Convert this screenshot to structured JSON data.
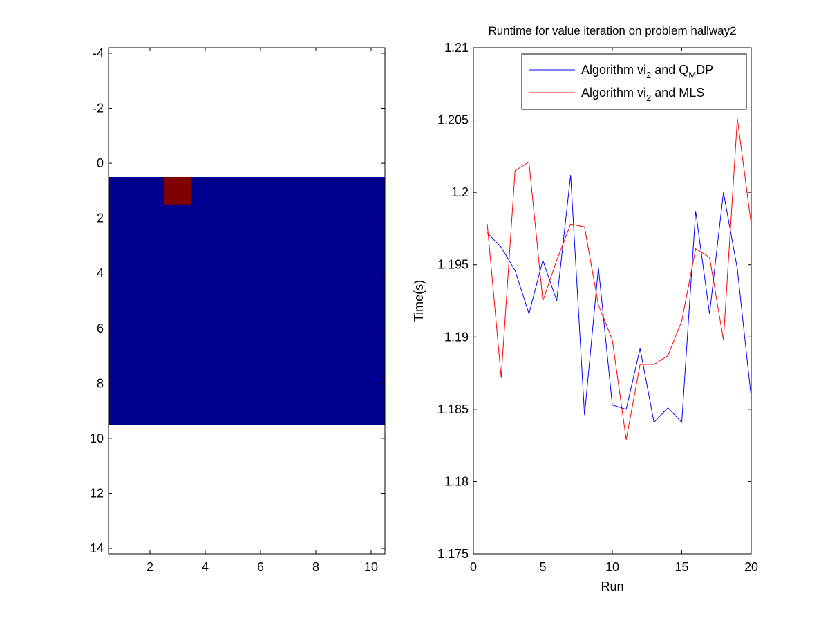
{
  "chart_data": [
    {
      "type": "heatmap",
      "xlim": [
        0.5,
        10.5
      ],
      "ylim": [
        -4.2,
        14.2
      ],
      "y_reversed": true,
      "xticks": [
        2,
        4,
        6,
        8,
        10
      ],
      "yticks": [
        -4,
        -2,
        0,
        2,
        4,
        6,
        8,
        10,
        12,
        14
      ],
      "cells": {
        "x_range": [
          0.5,
          10.5
        ],
        "y_range": [
          0.5,
          9.5
        ],
        "background_color": "#00008F",
        "highlight": {
          "x": 3,
          "y": 1,
          "color": "#800000"
        }
      }
    },
    {
      "type": "line",
      "title": "Runtime for value iteration on problem hallway2",
      "xlabel": "Run",
      "ylabel": "Time(s)",
      "xlim": [
        0,
        20
      ],
      "ylim": [
        1.175,
        1.21
      ],
      "xticks": [
        0,
        5,
        10,
        15,
        20
      ],
      "yticks": [
        1.175,
        1.18,
        1.185,
        1.19,
        1.195,
        1.2,
        1.205,
        1.21
      ],
      "ytick_labels": [
        "1.175",
        "1.18",
        "1.185",
        "1.19",
        "1.195",
        "1.2",
        "1.205",
        "1.21"
      ],
      "legend_position": "top-right",
      "x": [
        1,
        2,
        3,
        4,
        5,
        6,
        7,
        8,
        9,
        10,
        11,
        12,
        13,
        14,
        15,
        16,
        17,
        18,
        19,
        20
      ],
      "series": [
        {
          "legend_parts": [
            "Algorithm vi",
            "2",
            " and Q",
            "M",
            "DP"
          ],
          "color": "#0000FF",
          "values": [
            1.1972,
            1.1962,
            1.1946,
            1.1916,
            1.1953,
            1.1925,
            1.2012,
            1.1846,
            1.1948,
            1.1853,
            1.185,
            1.1892,
            1.1841,
            1.1851,
            1.1841,
            1.1987,
            1.1916,
            1.2,
            1.1947,
            1.1858
          ]
        },
        {
          "legend_parts": [
            "Algorithm vi",
            "2",
            " and MLS"
          ],
          "color": "#FF0000",
          "values": [
            1.1978,
            1.1872,
            1.2015,
            1.2021,
            1.1925,
            1.1953,
            1.1978,
            1.1976,
            1.1922,
            1.1898,
            1.1829,
            1.1881,
            1.1881,
            1.1887,
            1.1911,
            1.1961,
            1.1955,
            1.1898,
            1.2051,
            1.1978
          ]
        }
      ]
    }
  ]
}
